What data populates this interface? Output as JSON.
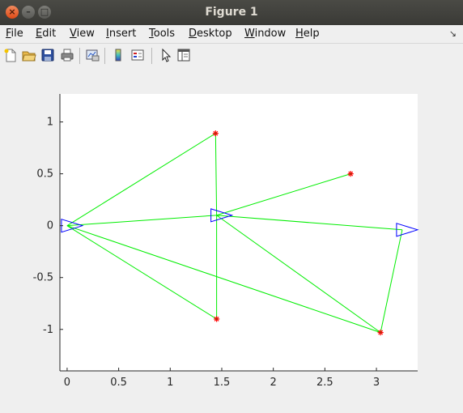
{
  "window": {
    "title": "Figure 1"
  },
  "menu": [
    {
      "key": "file",
      "label": "File",
      "ul": "F",
      "rest": "ile"
    },
    {
      "key": "edit",
      "label": "Edit",
      "ul": "E",
      "rest": "dit"
    },
    {
      "key": "view",
      "label": "View",
      "ul": "V",
      "rest": "iew"
    },
    {
      "key": "insert",
      "label": "Insert",
      "ul": "I",
      "rest": "nsert"
    },
    {
      "key": "tools",
      "label": "Tools",
      "ul": "T",
      "rest": "ools"
    },
    {
      "key": "desktop",
      "label": "Desktop",
      "ul": "D",
      "rest": "esktop"
    },
    {
      "key": "window",
      "label": "Window",
      "ul": "W",
      "rest": "indow"
    },
    {
      "key": "help",
      "label": "Help",
      "ul": "H",
      "rest": "elp"
    }
  ],
  "toolbar": {
    "icons": [
      "new-figure-icon",
      "open-file-icon",
      "save-icon",
      "print-icon",
      "link-plot-icon",
      "colorbar-icon",
      "legend-icon",
      "pointer-icon",
      "property-inspector-icon"
    ]
  },
  "chart_data": {
    "type": "line",
    "xlim": [
      -0.07,
      3.4
    ],
    "ylim": [
      -1.4,
      1.27
    ],
    "xticks": [
      0,
      0.5,
      1,
      1.5,
      2,
      2.5,
      3
    ],
    "xtick_labels": [
      "0",
      "0.5",
      "1",
      "1.5",
      "2",
      "2.5",
      "3"
    ],
    "yticks": [
      1,
      0.5,
      0,
      -0.5,
      -1
    ],
    "ytick_labels": [
      "1",
      "0.5",
      "0",
      "-0.5",
      "-1"
    ],
    "grid": false,
    "targets": [
      {
        "x": 1.44,
        "y": 0.89
      },
      {
        "x": 2.75,
        "y": 0.5
      },
      {
        "x": 1.45,
        "y": -0.9
      },
      {
        "x": 3.04,
        "y": -1.03
      }
    ],
    "agents": [
      {
        "x": 0.0,
        "y": 0.0,
        "heading": 0
      },
      {
        "x": 1.45,
        "y": 0.1,
        "heading": 0
      },
      {
        "x": 3.25,
        "y": -0.04,
        "heading": 0
      }
    ],
    "edges": [
      [
        [
          0.0,
          0.0
        ],
        [
          1.44,
          0.89
        ]
      ],
      [
        [
          0.0,
          0.0
        ],
        [
          1.45,
          0.1
        ]
      ],
      [
        [
          0.0,
          0.0
        ],
        [
          1.45,
          -0.9
        ]
      ],
      [
        [
          0.0,
          0.0
        ],
        [
          3.04,
          -1.03
        ]
      ],
      [
        [
          1.45,
          0.1
        ],
        [
          1.44,
          0.89
        ]
      ],
      [
        [
          1.45,
          0.1
        ],
        [
          2.75,
          0.5
        ]
      ],
      [
        [
          1.45,
          0.1
        ],
        [
          1.45,
          -0.9
        ]
      ],
      [
        [
          1.45,
          0.1
        ],
        [
          3.04,
          -1.03
        ]
      ],
      [
        [
          1.45,
          0.1
        ],
        [
          3.25,
          -0.04
        ]
      ],
      [
        [
          3.25,
          -0.04
        ],
        [
          3.04,
          -1.03
        ]
      ]
    ],
    "colors": {
      "edge": "#00ee00",
      "agent": "#0000ff",
      "target_outer": "#ff0000",
      "target_inner": "#8b4513"
    }
  }
}
